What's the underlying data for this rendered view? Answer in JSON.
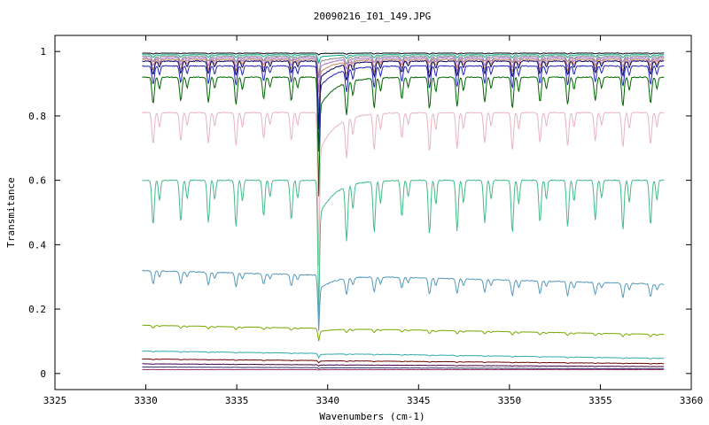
{
  "chart_data": {
    "type": "line",
    "title": "20090216_I01_149.JPG",
    "xlabel": "Wavenumbers (cm-1)",
    "ylabel": "Transmitance",
    "xlim": [
      3325,
      3360
    ],
    "ylim": [
      -0.05,
      1.05
    ],
    "xticks": [
      3325,
      3330,
      3335,
      3340,
      3345,
      3350,
      3355,
      3360
    ],
    "yticks": [
      0,
      0.2,
      0.4,
      0.6,
      0.8,
      1
    ],
    "ytick_labels": [
      "0",
      "0.2",
      "0.4",
      "0.6",
      "0.8",
      "1"
    ],
    "grid": false,
    "x_range": [
      3329.8,
      3358.5
    ],
    "line_spacing_cm": 1.52,
    "first_line_cm": 3330.4,
    "main_line_cm": 3339.5,
    "series": [
      {
        "color": "#000000",
        "base": 0.995,
        "depth": 0.003,
        "main_depth": 0.004,
        "slope": 0.0
      },
      {
        "color": "#00aa88",
        "base": 0.99,
        "depth": 0.01,
        "main_depth": 0.02,
        "slope": 0.0
      },
      {
        "color": "#888888",
        "base": 0.985,
        "depth": 0.02,
        "main_depth": 0.05,
        "slope": 0.0
      },
      {
        "color": "#aa77cc",
        "base": 0.98,
        "depth": 0.03,
        "main_depth": 0.08,
        "slope": 0.0
      },
      {
        "color": "#cc8866",
        "base": 0.975,
        "depth": 0.04,
        "main_depth": 0.12,
        "slope": 0.0
      },
      {
        "color": "#000066",
        "base": 0.97,
        "depth": 0.05,
        "main_depth": 0.16,
        "slope": 0.0
      },
      {
        "color": "#2222bb",
        "base": 0.955,
        "depth": 0.07,
        "main_depth": 0.2,
        "slope": 0.0
      },
      {
        "color": "#006600",
        "base": 0.92,
        "depth": 0.1,
        "main_depth": 0.28,
        "slope": 0.0
      },
      {
        "color": "#e8b4c0",
        "base": 0.81,
        "depth": 0.12,
        "main_depth": 0.36,
        "slope": 0.0
      },
      {
        "color": "#44bb88",
        "base": 0.6,
        "depth": 0.17,
        "main_depth": 0.32,
        "slope": 0.0
      },
      {
        "color": "#5599bb",
        "base": 0.32,
        "depth": 0.05,
        "main_depth": 0.13,
        "slope": -0.0015
      },
      {
        "color": "#77aa00",
        "base": 0.15,
        "depth": 0.01,
        "main_depth": 0.03,
        "slope": -0.001
      },
      {
        "color": "#33aaaa",
        "base": 0.07,
        "depth": 0.003,
        "main_depth": 0.01,
        "slope": -0.0008
      },
      {
        "color": "#660000",
        "base": 0.045,
        "depth": 0.002,
        "main_depth": 0.005,
        "slope": -0.0005
      },
      {
        "color": "#440044",
        "base": 0.03,
        "depth": 0.001,
        "main_depth": 0.003,
        "slope": -0.0003
      },
      {
        "color": "#333366",
        "base": 0.02,
        "depth": 0.0,
        "main_depth": 0.002,
        "slope": -0.0002
      },
      {
        "color": "#993366",
        "base": 0.012,
        "depth": 0.0,
        "main_depth": 0.001,
        "slope": 0.0
      }
    ]
  }
}
